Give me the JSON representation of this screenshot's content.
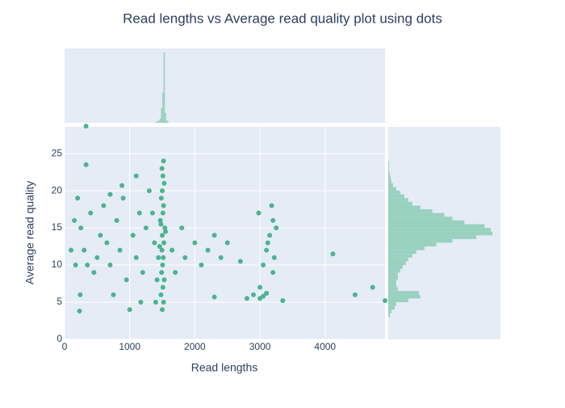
{
  "chart_data": [
    {
      "type": "scatter",
      "title": "Read lengths vs Average read quality plot using dots",
      "x_label": "Read lengths",
      "y_label": "Average read quality",
      "color": "#4cb391",
      "xlim": [
        0,
        4920
      ],
      "ylim": [
        0,
        28.6
      ],
      "xticks": [
        0,
        1000,
        2000,
        3000,
        4000
      ],
      "yticks": [
        0,
        5,
        10,
        15,
        20,
        25
      ],
      "grid": true,
      "x": [
        1500,
        1520,
        1480,
        1510,
        1530,
        1490,
        1505,
        1515,
        1495,
        1525,
        1500,
        1540,
        1470,
        1510,
        1520,
        1485,
        1500,
        1530,
        1510,
        1495,
        1520,
        1460,
        1550,
        1480,
        1440,
        1420,
        1400,
        1380,
        1350,
        1300,
        200,
        250,
        300,
        350,
        330,
        330,
        400,
        450,
        500,
        550,
        600,
        650,
        700,
        750,
        800,
        850,
        900,
        950,
        1000,
        1050,
        1100,
        1150,
        1200,
        1250,
        230,
        240,
        100,
        150,
        170,
        700,
        880,
        1170,
        1100,
        1650,
        1700,
        1800,
        1850,
        2000,
        2100,
        2200,
        2300,
        2400,
        2500,
        2700,
        2300,
        2800,
        2900,
        3000,
        3050,
        3100,
        3150,
        3200,
        3180,
        3120,
        3220,
        3000,
        3050,
        3100,
        3200,
        3250,
        3350,
        2980,
        4120,
        4460,
        4730,
        4920
      ],
      "y": [
        4,
        5,
        6,
        7,
        8,
        9,
        10,
        11,
        12,
        13,
        14,
        15,
        16,
        17,
        18,
        19,
        20,
        21,
        22,
        23,
        24,
        12.5,
        14.5,
        15.5,
        11,
        8,
        5,
        13,
        17,
        20,
        19,
        15,
        12,
        10,
        23.5,
        28.7,
        17,
        9,
        11,
        14,
        18,
        13,
        10,
        6,
        16,
        12,
        19,
        8,
        4,
        14,
        11,
        17,
        9,
        15,
        3.8,
        6,
        12,
        16,
        10,
        19.5,
        20.7,
        5,
        22,
        12,
        9,
        15,
        11,
        13,
        10,
        12,
        14,
        11,
        13,
        10.5,
        5.7,
        5.5,
        6,
        7,
        10,
        12,
        14,
        16,
        18,
        13,
        11,
        5.5,
        5.8,
        6.2,
        9,
        15,
        5.2,
        17,
        11.5,
        6,
        7,
        5.2
      ]
    },
    {
      "type": "histogram",
      "orientation": "vertical",
      "color": "#99d1bf",
      "xlim": [
        0,
        4920
      ],
      "ylim": [
        0,
        148
      ],
      "bins": [
        1400,
        1420,
        1440,
        1460,
        1480,
        1500,
        1520,
        1540,
        1560,
        1580,
        1600
      ],
      "counts": [
        2,
        3,
        5,
        8,
        30,
        60,
        140,
        20,
        5,
        2
      ]
    },
    {
      "type": "histogram",
      "orientation": "horizontal",
      "color": "#99d1bf",
      "xlim": [
        0,
        140
      ],
      "ylim": [
        0,
        28.6
      ],
      "bins": [
        3,
        3.5,
        4,
        4.5,
        5,
        5.5,
        6,
        6.5,
        7,
        7.5,
        8,
        8.5,
        9,
        9.5,
        10,
        10.5,
        11,
        11.5,
        12,
        12.5,
        13,
        13.5,
        14,
        14.5,
        15,
        15.5,
        16,
        16.5,
        17,
        17.5,
        18,
        18.5,
        19,
        19.5,
        20,
        20.5,
        21,
        21.5,
        22,
        22.5,
        23,
        23.5,
        24
      ],
      "counts": [
        2,
        4,
        8,
        10,
        25,
        40,
        38,
        12,
        10,
        10,
        12,
        12,
        15,
        18,
        22,
        25,
        30,
        35,
        45,
        60,
        80,
        110,
        130,
        128,
        120,
        95,
        80,
        70,
        55,
        40,
        30,
        25,
        20,
        15,
        10,
        6,
        4,
        3,
        2,
        1,
        1,
        1
      ]
    }
  ]
}
